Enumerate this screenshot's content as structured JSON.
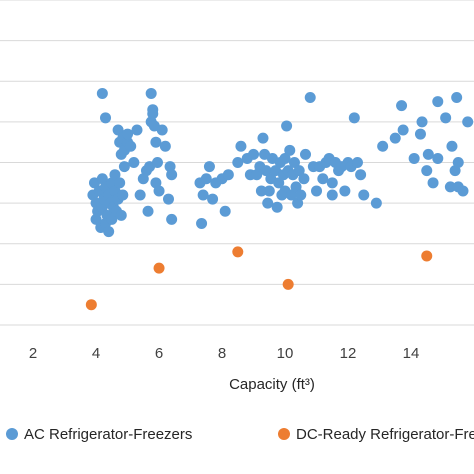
{
  "chart_data": {
    "type": "scatter",
    "title": "",
    "xlabel": "Capacity (ft³)",
    "ylabel": "",
    "x_ticks": [
      2,
      4,
      6,
      8,
      10,
      12,
      14
    ],
    "xlim": [
      0.95,
      16.0
    ],
    "ylim": [
      0,
      8
    ],
    "grid": true,
    "legend_position": "bottom",
    "series": [
      {
        "name": "AC Refrigerator-Freezers",
        "color": "#5b9bd5",
        "points": [
          [
            3.9,
            3.2
          ],
          [
            3.95,
            3.5
          ],
          [
            4.0,
            3.0
          ],
          [
            4.0,
            2.6
          ],
          [
            4.05,
            2.8
          ],
          [
            4.1,
            3.3
          ],
          [
            4.15,
            2.4
          ],
          [
            4.2,
            3.6
          ],
          [
            4.2,
            2.9
          ],
          [
            4.25,
            3.1
          ],
          [
            4.3,
            2.5
          ],
          [
            4.3,
            3.4
          ],
          [
            4.35,
            2.7
          ],
          [
            4.4,
            3.2
          ],
          [
            4.4,
            2.3
          ],
          [
            4.45,
            3.0
          ],
          [
            4.5,
            3.5
          ],
          [
            4.5,
            2.6
          ],
          [
            4.55,
            2.9
          ],
          [
            4.6,
            3.3
          ],
          [
            4.6,
            3.7
          ],
          [
            4.65,
            2.8
          ],
          [
            4.7,
            3.1
          ],
          [
            4.75,
            3.5
          ],
          [
            4.8,
            2.7
          ],
          [
            4.85,
            3.2
          ],
          [
            4.9,
            3.9
          ],
          [
            4.2,
            5.7
          ],
          [
            4.3,
            5.1
          ],
          [
            4.7,
            4.8
          ],
          [
            4.75,
            4.5
          ],
          [
            4.8,
            4.2
          ],
          [
            4.85,
            4.6
          ],
          [
            4.9,
            4.3
          ],
          [
            5.0,
            4.5
          ],
          [
            5.0,
            4.7
          ],
          [
            5.1,
            4.4
          ],
          [
            5.2,
            4.0
          ],
          [
            5.3,
            4.8
          ],
          [
            5.4,
            3.2
          ],
          [
            5.5,
            3.6
          ],
          [
            5.6,
            3.8
          ],
          [
            5.65,
            2.8
          ],
          [
            5.7,
            3.9
          ],
          [
            5.75,
            5.0
          ],
          [
            5.75,
            5.7
          ],
          [
            5.8,
            5.3
          ],
          [
            5.8,
            5.2
          ],
          [
            5.85,
            4.9
          ],
          [
            5.9,
            4.5
          ],
          [
            5.9,
            3.5
          ],
          [
            5.95,
            4.0
          ],
          [
            6.0,
            3.3
          ],
          [
            6.1,
            4.8
          ],
          [
            6.2,
            4.4
          ],
          [
            6.3,
            3.1
          ],
          [
            6.35,
            3.9
          ],
          [
            6.4,
            3.7
          ],
          [
            6.4,
            2.6
          ],
          [
            7.3,
            3.5
          ],
          [
            7.35,
            2.5
          ],
          [
            7.4,
            3.2
          ],
          [
            7.5,
            3.6
          ],
          [
            7.6,
            3.9
          ],
          [
            7.7,
            3.1
          ],
          [
            7.8,
            3.5
          ],
          [
            8.0,
            3.6
          ],
          [
            8.1,
            2.8
          ],
          [
            8.2,
            3.7
          ],
          [
            8.5,
            4.0
          ],
          [
            8.6,
            4.4
          ],
          [
            8.8,
            4.1
          ],
          [
            8.9,
            3.7
          ],
          [
            9.0,
            4.2
          ],
          [
            9.1,
            3.7
          ],
          [
            9.2,
            3.9
          ],
          [
            9.25,
            3.3
          ],
          [
            9.3,
            4.6
          ],
          [
            9.35,
            4.2
          ],
          [
            9.4,
            3.8
          ],
          [
            9.45,
            3.0
          ],
          [
            9.5,
            3.3
          ],
          [
            9.55,
            3.6
          ],
          [
            9.6,
            4.1
          ],
          [
            9.7,
            3.8
          ],
          [
            9.75,
            2.9
          ],
          [
            9.8,
            3.5
          ],
          [
            9.85,
            4.0
          ],
          [
            9.9,
            3.2
          ],
          [
            9.95,
            3.7
          ],
          [
            10.0,
            4.1
          ],
          [
            10.0,
            3.3
          ],
          [
            10.05,
            4.9
          ],
          [
            10.1,
            3.8
          ],
          [
            10.15,
            4.3
          ],
          [
            10.2,
            3.2
          ],
          [
            10.25,
            3.7
          ],
          [
            10.3,
            4.0
          ],
          [
            10.35,
            3.4
          ],
          [
            10.4,
            3.0
          ],
          [
            10.45,
            3.8
          ],
          [
            10.5,
            3.2
          ],
          [
            10.6,
            3.6
          ],
          [
            10.65,
            4.2
          ],
          [
            10.8,
            5.6
          ],
          [
            10.9,
            3.9
          ],
          [
            11.0,
            3.3
          ],
          [
            11.1,
            3.9
          ],
          [
            11.2,
            3.6
          ],
          [
            11.3,
            4.0
          ],
          [
            11.4,
            4.1
          ],
          [
            11.5,
            3.5
          ],
          [
            11.5,
            3.2
          ],
          [
            11.6,
            4.0
          ],
          [
            11.7,
            3.8
          ],
          [
            11.8,
            3.9
          ],
          [
            11.9,
            3.3
          ],
          [
            12.0,
            4.0
          ],
          [
            12.1,
            3.9
          ],
          [
            12.2,
            5.1
          ],
          [
            12.3,
            4.0
          ],
          [
            12.4,
            3.7
          ],
          [
            12.5,
            3.2
          ],
          [
            12.9,
            3.0
          ],
          [
            13.1,
            4.4
          ],
          [
            13.5,
            4.6
          ],
          [
            13.7,
            5.4
          ],
          [
            13.75,
            4.8
          ],
          [
            14.1,
            4.1
          ],
          [
            14.3,
            4.7
          ],
          [
            14.35,
            5.0
          ],
          [
            14.5,
            3.8
          ],
          [
            14.55,
            4.2
          ],
          [
            14.7,
            3.5
          ],
          [
            14.85,
            5.5
          ],
          [
            14.85,
            4.1
          ],
          [
            15.1,
            5.1
          ],
          [
            15.25,
            3.4
          ],
          [
            15.3,
            4.4
          ],
          [
            15.4,
            3.8
          ],
          [
            15.45,
            5.6
          ],
          [
            15.5,
            3.4
          ],
          [
            15.5,
            4.0
          ],
          [
            15.65,
            3.3
          ],
          [
            15.8,
            5.0
          ]
        ]
      },
      {
        "name": "DC-Ready Refrigerator-Freezers",
        "color": "#ed7d31",
        "points": [
          [
            3.85,
            0.5
          ],
          [
            6.0,
            1.4
          ],
          [
            8.5,
            1.8
          ],
          [
            10.1,
            1.0
          ],
          [
            14.5,
            1.7
          ]
        ]
      }
    ]
  }
}
